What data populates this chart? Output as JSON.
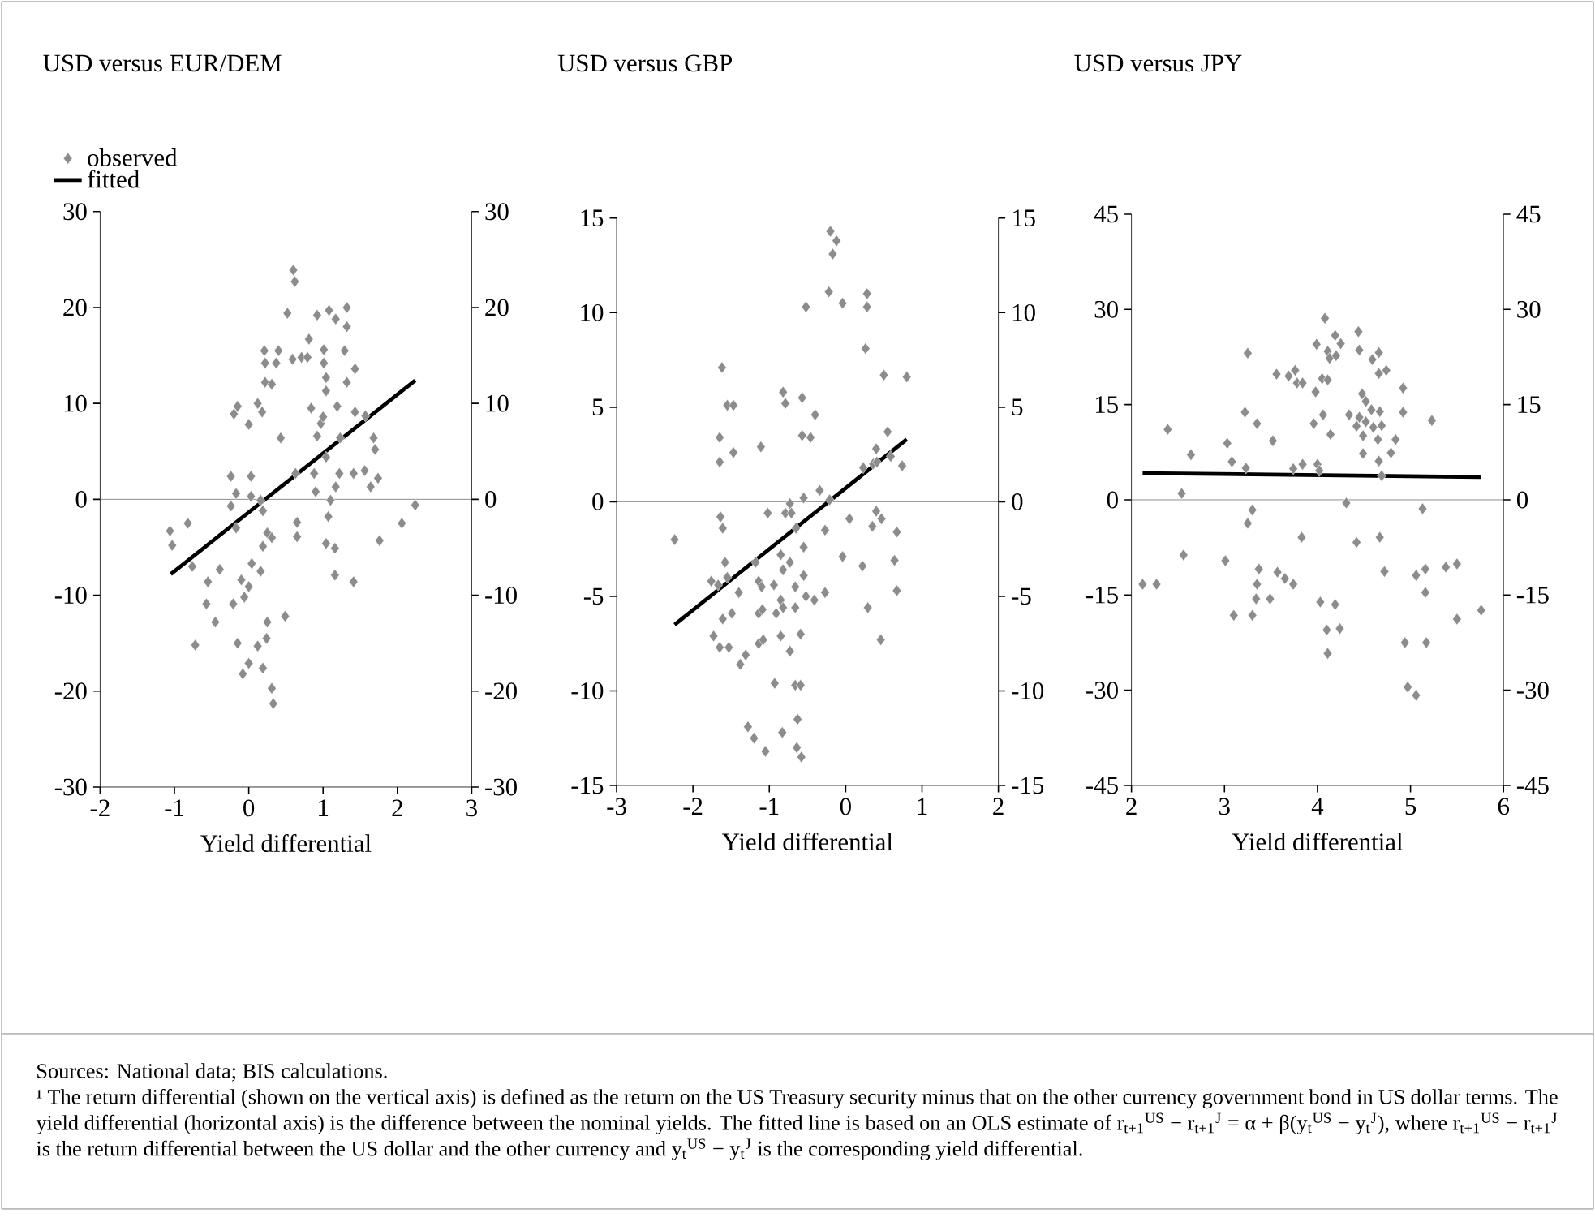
{
  "chart_data": [
    {
      "type": "scatter",
      "title": "USD versus EUR/DEM",
      "xlabel": "Yield differential",
      "legend": "top left",
      "xlim": [
        -2,
        3
      ],
      "xticks": [
        -2,
        -1,
        0,
        1,
        2,
        3
      ],
      "ylim": [
        -30,
        30
      ],
      "yticks": [
        -30,
        -20,
        -10,
        0,
        10,
        20,
        30
      ],
      "y2lim": [
        -30,
        30
      ],
      "y2ticks": [
        -30,
        -20,
        -10,
        0,
        10,
        20,
        30
      ],
      "ref_lines": [
        {
          "axis": "y",
          "value": 0,
          "color": "#707070"
        }
      ],
      "series": [
        {
          "name": "observed",
          "type": "scatter",
          "marker": "diamond",
          "color": "#8c8c8c",
          "x": [
            -1.06,
            -1.03,
            -0.82,
            -0.76,
            -0.72,
            -0.55,
            -0.57,
            -0.45,
            -0.39,
            -0.24,
            -0.17,
            -0.24,
            -0.17,
            -0.21,
            -0.2,
            -0.15,
            -0.15,
            -0.1,
            -0.06,
            -0.08,
            0,
            0.03,
            0.03,
            0,
            0,
            0.04,
            0.12,
            0.18,
            0.12,
            0.16,
            0.16,
            0.19,
            0.19,
            0.19,
            0.21,
            0.22,
            0.22,
            0.31,
            0.25,
            0.31,
            0.25,
            0.24,
            0.31,
            0.33,
            0.37,
            0.4,
            0.43,
            0.49,
            0.52,
            0.59,
            0.63,
            0.65,
            0.65,
            0.71,
            0.79,
            0.81,
            0.84,
            0.88,
            0.9,
            0.92,
            0.92,
            0.97,
            1.0,
            1.01,
            1.01,
            1.04,
            1.04,
            1.04,
            1.08,
            1.07,
            1.04,
            1.1,
            1.16,
            1.17,
            1.16,
            1.17,
            1.19,
            1.23,
            1.22,
            1.29,
            1.32,
            1.32,
            1.32,
            1.41,
            1.41,
            1.43,
            1.43,
            1.56,
            1.57,
            1.64,
            1.68,
            1.7,
            1.74,
            1.76,
            2.06,
            2.24,
            0.6,
            0.62
          ],
          "values": [
            -3.3,
            -4.8,
            -2.5,
            -7,
            -15.2,
            -8.6,
            -10.9,
            -12.8,
            -7.3,
            2.4,
            0.6,
            -0.7,
            -3,
            -10.9,
            8.9,
            9.7,
            -15,
            -8.4,
            -10.2,
            -18.2,
            7.8,
            2.4,
            0.3,
            -9.1,
            -17.1,
            -6.7,
            10,
            9.1,
            -15.3,
            -7.5,
            -0.1,
            -1.2,
            -4.9,
            -17.6,
            15.5,
            14.2,
            12.2,
            12,
            -3.5,
            -4,
            -12.8,
            -14.5,
            -19.7,
            -21.3,
            14.2,
            15.5,
            6.4,
            -12.2,
            19.4,
            14.6,
            2.7,
            -2.4,
            -3.9,
            14.8,
            14.8,
            16.7,
            9.5,
            2.7,
            0.8,
            6.6,
            19.2,
            7.9,
            8.6,
            15.6,
            14.2,
            12.7,
            11.3,
            4.4,
            19.7,
            -1.8,
            -4.6,
            -0.1,
            -5.1,
            1.3,
            -7.9,
            18.8,
            9.7,
            6.4,
            2.7,
            15.5,
            20,
            12.2,
            18,
            2.7,
            -8.6,
            13.6,
            9.1,
            3,
            8.7,
            1.3,
            6.4,
            5.2,
            2.2,
            -4.3,
            -2.5,
            -0.6,
            23.9,
            22.7
          ]
        },
        {
          "name": "fitted",
          "type": "line",
          "color": "#000000",
          "x": [
            -1.05,
            2.24
          ],
          "values": [
            -7.8,
            12.4
          ]
        }
      ],
      "annotations": [
        "Sources: National data; BIS calculations.",
        "¹ The return differential (shown on the vertical axis) is defined as the return on the US Treasury security minus that on the other currency government bond in US dollar terms. The yield differential (horizontal axis) is the difference between the nominal yields. The fitted line is based on an OLS estimate of r$_{t+1}$$^{US}$ − r$_{t+1}$$^{J}$ = α + β(y$_{t}$$^{US}$ − y$_{t}$$^{J}$), where r$_{t+1}$$^{US}$ − r$_{t+1}$$^{J}$ is the return differential between the US dollar and the other currency and y$_{t}$$^{US}$ − y$_{t}$$^{J}$ is the corresponding yield differential."
      ]
    },
    {
      "type": "scatter",
      "title": "USD versus GBP",
      "xlabel": "Yield differential",
      "xlim": [
        -3,
        2
      ],
      "xticks": [
        -3,
        -2,
        -1,
        0,
        1,
        2
      ],
      "ylim": [
        -15,
        15
      ],
      "yticks": [
        -15,
        -10,
        -5,
        0,
        5,
        10,
        15
      ],
      "y2lim": [
        -15,
        15
      ],
      "y2ticks": [
        -15,
        -10,
        -5,
        0,
        5,
        10,
        15
      ],
      "ref_lines": [
        {
          "axis": "y",
          "value": 0,
          "color": "#707070"
        }
      ],
      "series": [
        {
          "type": "scatter",
          "marker": "diamond",
          "color": "#8c8c8c",
          "x": [
            -2.24,
            -1.62,
            -1.65,
            -1.65,
            -1.64,
            -1.61,
            -1.58,
            -1.55,
            -1.47,
            -1.47,
            -1.76,
            -1.67,
            -1.55,
            -1.4,
            -1.73,
            -1.65,
            -1.61,
            -1.53,
            -1.49,
            -1.38,
            -1.31,
            -1.28,
            -1.2,
            -1.11,
            -1.18,
            -1.14,
            -1.1,
            -1.14,
            -1.09,
            -1.14,
            -1.08,
            -1.05,
            -1.02,
            -0.94,
            -0.93,
            -0.91,
            -0.82,
            -0.79,
            -0.79,
            -0.73,
            -0.71,
            -0.85,
            -0.82,
            -0.73,
            -0.85,
            -0.82,
            -0.85,
            -0.73,
            -0.83,
            -0.65,
            -0.66,
            -0.66,
            -0.66,
            -0.59,
            -0.63,
            -0.64,
            -0.58,
            -0.57,
            -0.57,
            -0.55,
            -0.55,
            -0.55,
            -0.59,
            -0.52,
            -0.46,
            -0.4,
            -0.41,
            -0.34,
            -0.27,
            -0.27,
            -0.21,
            -0.04,
            0.05,
            0.22,
            0.23,
            0.29,
            0.36,
            0.35,
            0.4,
            0.4,
            0.47,
            0.46,
            0.41,
            0.55,
            0.59,
            0.5,
            0.67,
            0.64,
            0.67,
            0.74,
            0.8,
            0.26,
            -0.52,
            -0.04,
            0.28,
            -0.22,
            0.28,
            -0.2,
            -0.12,
            -0.17
          ],
          "values": [
            -2.0,
            7.1,
            3.4,
            2.1,
            -0.8,
            -1.4,
            -3.2,
            5.1,
            5.1,
            2.6,
            -4.2,
            -4.4,
            -4.0,
            -4.8,
            -7.1,
            -7.7,
            -6.2,
            -7.7,
            -5.9,
            -8.6,
            -8.1,
            -11.9,
            -12.5,
            2.9,
            -3.2,
            -4.2,
            -4.5,
            -5.9,
            -5.7,
            -7.5,
            -7.3,
            -13.2,
            -0.6,
            -4.4,
            -9.6,
            -5.9,
            5.8,
            5.2,
            -0.6,
            -0.1,
            -0.6,
            -2.8,
            -3.6,
            -3.2,
            -5.2,
            -5.6,
            -7.1,
            -7.9,
            -12.2,
            -1.4,
            -4.5,
            -5.6,
            -9.7,
            -9.7,
            -11.5,
            -13,
            -13.5,
            5.5,
            3.5,
            0.2,
            -2.4,
            -3.9,
            -7.0,
            -5.0,
            3.4,
            4.6,
            -5.2,
            0.6,
            -1.5,
            -4.8,
            0.1,
            -2.9,
            -0.9,
            -3.4,
            1.8,
            -5.6,
            2.0,
            -1.3,
            2.8,
            -0.5,
            -0.9,
            -7.3,
            2.1,
            3.7,
            2.4,
            6.7,
            -1.6,
            -3.1,
            -4.7,
            1.9,
            6.6,
            8.1,
            10.3,
            10.5,
            10.3,
            11.1,
            11,
            14.3,
            13.8,
            13.1
          ]
        },
        {
          "type": "line",
          "color": "#000000",
          "x": [
            -2.24,
            0.8
          ],
          "values": [
            -6.5,
            3.3
          ]
        }
      ]
    },
    {
      "type": "scatter",
      "title": "USD versus JPY",
      "xlabel": "Yield differential",
      "xlim": [
        2,
        6
      ],
      "xticks": [
        2,
        3,
        4,
        5,
        6
      ],
      "ylim": [
        -45,
        45
      ],
      "yticks": [
        -45,
        -30,
        -15,
        0,
        15,
        30,
        45
      ],
      "y2lim": [
        -45,
        45
      ],
      "y2ticks": [
        -45,
        -30,
        -15,
        0,
        15,
        30,
        45
      ],
      "ref_lines": [
        {
          "axis": "y",
          "value": 0,
          "color": "#707070"
        }
      ],
      "series": [
        {
          "type": "scatter",
          "marker": "diamond",
          "color": "#8c8c8c",
          "x": [
            2.12,
            2.27,
            2.39,
            2.54,
            2.56,
            2.64,
            3.01,
            3.03,
            3.08,
            3.1,
            3.22,
            3.23,
            3.25,
            3.25,
            3.3,
            3.3,
            3.34,
            3.35,
            3.35,
            3.37,
            3.49,
            3.52,
            3.56,
            3.57,
            3.65,
            3.69,
            3.74,
            3.74,
            3.76,
            3.78,
            3.84,
            3.84,
            3.83,
            3.96,
            3.98,
            3.99,
            4.0,
            4.02,
            4.03,
            4.05,
            4.06,
            4.08,
            4.11,
            4.11,
            4.13,
            4.1,
            4.11,
            4.14,
            4.19,
            4.19,
            4.2,
            4.24,
            4.25,
            4.31,
            4.34,
            4.42,
            4.42,
            4.44,
            4.45,
            4.45,
            4.48,
            4.49,
            4.49,
            4.52,
            4.52,
            4.59,
            4.58,
            4.6,
            4.65,
            4.66,
            4.66,
            4.66,
            4.67,
            4.67,
            4.69,
            4.69,
            4.72,
            4.74,
            4.79,
            4.84,
            4.92,
            4.92,
            4.94,
            4.97,
            5.06,
            5.06,
            5.13,
            5.16,
            5.16,
            5.17,
            5.23,
            5.38,
            5.5,
            5.5,
            5.76
          ],
          "values": [
            -13.3,
            -13.3,
            11.1,
            1.0,
            -8.7,
            7.1,
            -9.6,
            8.9,
            6.0,
            -18.2,
            13.8,
            5.0,
            23.1,
            -3.7,
            -1.6,
            -18.2,
            -15.6,
            -13.3,
            12.0,
            -10.9,
            -15.6,
            9.3,
            19.8,
            -11.4,
            -12.4,
            19.5,
            -13.3,
            4.9,
            20.4,
            18.4,
            18.4,
            5.6,
            -5.9,
            12.0,
            17.0,
            24.5,
            5.6,
            4.6,
            -16.1,
            19.1,
            13.4,
            28.6,
            18.9,
            23.4,
            22.3,
            -20.5,
            -24.2,
            10.3,
            -16.5,
            25.9,
            22.7,
            -20.3,
            24.6,
            -0.5,
            13.4,
            11.6,
            -6.7,
            26.5,
            23.6,
            13.0,
            16.7,
            10.1,
            7.3,
            12.3,
            15.5,
            22.1,
            14.2,
            11.4,
            9.5,
            23.2,
            19.9,
            6.1,
            13.9,
            -5.9,
            11.7,
            3.8,
            -11.3,
            20.4,
            7.4,
            9.5,
            17.6,
            13.8,
            -22.5,
            -29.5,
            -30.8,
            -11.9,
            -1.4,
            -10.9,
            -14.6,
            -22.5,
            12.5,
            -10.6,
            -10.1,
            -18.8,
            -17.4
          ]
        },
        {
          "type": "line",
          "color": "#000000",
          "x": [
            2.12,
            5.76
          ],
          "values": [
            4.2,
            3.6
          ]
        }
      ]
    }
  ]
}
